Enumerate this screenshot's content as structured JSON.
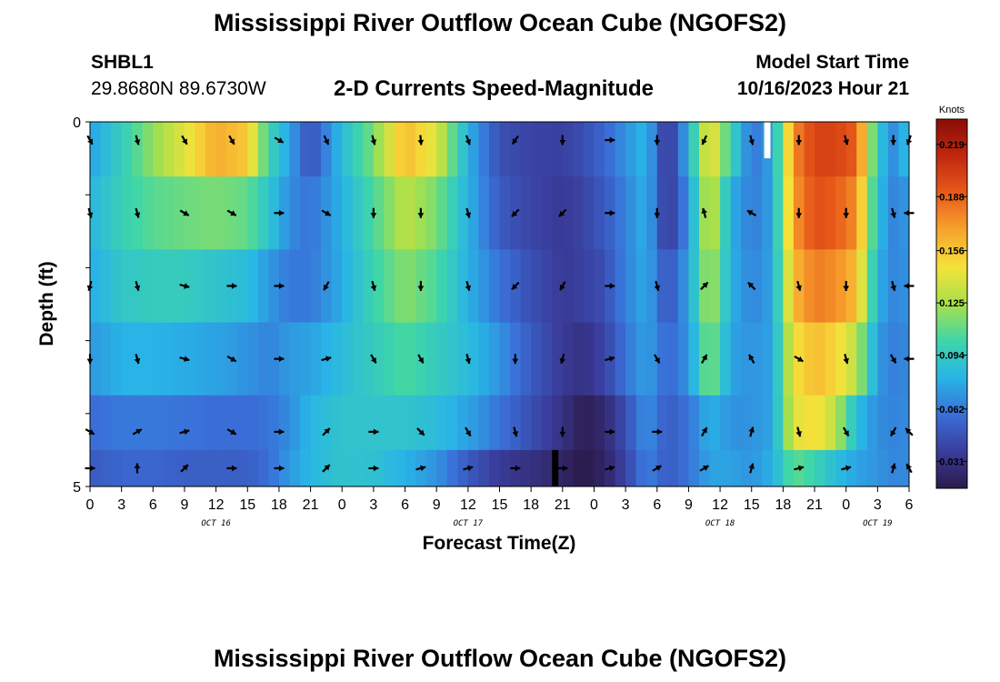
{
  "header": {
    "title": "Mississippi River Outflow Ocean Cube (NGOFS2)",
    "station": "SHBL1",
    "coordinates": "29.8680N  89.6730W",
    "plot_title": "2-D Currents Speed-Magnitude",
    "model_start_label": "Model Start Time",
    "model_start_value": "10/16/2023 Hour 21"
  },
  "footer": {
    "title": "Mississippi River Outflow Ocean Cube (NGOFS2)"
  },
  "chart_data": {
    "type": "heatmap",
    "title": "2-D Currents Speed-Magnitude",
    "xlabel": "Forecast Time(Z)",
    "ylabel": "Depth (ft)",
    "xlim": [
      0,
      78
    ],
    "ylim": [
      0,
      5
    ],
    "x_ticks": [
      0,
      3,
      6,
      9,
      12,
      15,
      18,
      21,
      24,
      27,
      30,
      33,
      36,
      39,
      42,
      45,
      48,
      51,
      54,
      57,
      60,
      63,
      66,
      69,
      72,
      75,
      78
    ],
    "x_tick_labels": [
      "0",
      "3",
      "6",
      "9",
      "12",
      "15",
      "18",
      "21",
      "0",
      "3",
      "6",
      "9",
      "12",
      "15",
      "18",
      "21",
      "0",
      "3",
      "6",
      "9",
      "12",
      "15",
      "18",
      "21",
      "0",
      "3",
      "6"
    ],
    "date_labels": [
      {
        "label": "OCT 16",
        "x": 12
      },
      {
        "label": "OCT 17",
        "x": 36
      },
      {
        "label": "OCT 18",
        "x": 60
      },
      {
        "label": "OCT 19",
        "x": 75
      }
    ],
    "y_tick_labels": [
      {
        "label": "0",
        "depth": 0
      },
      {
        "label": "5",
        "depth": 5
      }
    ],
    "depth_levels": [
      0.25,
      1.25,
      2.25,
      3.25,
      4.25,
      4.75
    ],
    "colorbar": {
      "unit": "Knots",
      "min": 0.015,
      "max": 0.234,
      "tick_values": [
        0.219,
        0.188,
        0.156,
        0.125,
        0.094,
        0.062,
        0.031
      ],
      "tick_labels": [
        "0.219",
        "0.188",
        "0.156",
        "0.125",
        "0.094",
        "0.062",
        "0.031"
      ],
      "colors": [
        "#2b1a4a",
        "#3a3d9c",
        "#3a6fd8",
        "#28b5e6",
        "#3fd6a8",
        "#a8e04a",
        "#f5e23a",
        "#f7a32d",
        "#e85a1a",
        "#c1270e",
        "#8a0d06"
      ]
    },
    "speed_keyframes": [
      {
        "t": 0,
        "v": [
          0.075,
          0.082,
          0.078,
          0.072,
          0.058,
          0.05
        ]
      },
      {
        "t": 3,
        "v": [
          0.095,
          0.098,
          0.092,
          0.08,
          0.062,
          0.055
        ]
      },
      {
        "t": 6,
        "v": [
          0.12,
          0.108,
          0.095,
          0.08,
          0.062,
          0.055
        ]
      },
      {
        "t": 9,
        "v": [
          0.14,
          0.112,
          0.095,
          0.078,
          0.06,
          0.052
        ]
      },
      {
        "t": 12,
        "v": [
          0.165,
          0.115,
          0.09,
          0.075,
          0.058,
          0.052
        ]
      },
      {
        "t": 15,
        "v": [
          0.155,
          0.11,
          0.085,
          0.07,
          0.058,
          0.052
        ]
      },
      {
        "t": 17,
        "v": [
          0.1,
          0.09,
          0.072,
          0.065,
          0.06,
          0.058
        ]
      },
      {
        "t": 19,
        "v": [
          0.075,
          0.068,
          0.062,
          0.072,
          0.068,
          0.072
        ]
      },
      {
        "t": 21,
        "v": [
          0.045,
          0.06,
          0.062,
          0.075,
          0.082,
          0.082
        ]
      },
      {
        "t": 24,
        "v": [
          0.085,
          0.08,
          0.078,
          0.085,
          0.09,
          0.09
        ]
      },
      {
        "t": 27,
        "v": [
          0.115,
          0.105,
          0.1,
          0.095,
          0.09,
          0.088
        ]
      },
      {
        "t": 30,
        "v": [
          0.16,
          0.13,
          0.118,
          0.105,
          0.09,
          0.08
        ]
      },
      {
        "t": 33,
        "v": [
          0.14,
          0.115,
          0.105,
          0.095,
          0.085,
          0.07
        ]
      },
      {
        "t": 36,
        "v": [
          0.08,
          0.08,
          0.08,
          0.085,
          0.075,
          0.05
        ]
      },
      {
        "t": 39,
        "v": [
          0.045,
          0.05,
          0.06,
          0.07,
          0.06,
          0.035
        ]
      },
      {
        "t": 42,
        "v": [
          0.04,
          0.04,
          0.045,
          0.05,
          0.045,
          0.03
        ]
      },
      {
        "t": 45,
        "v": [
          0.038,
          0.035,
          0.035,
          0.035,
          0.03,
          0.022
        ]
      },
      {
        "t": 47,
        "v": [
          0.045,
          0.04,
          0.038,
          0.03,
          0.018,
          0.015
        ]
      },
      {
        "t": 49,
        "v": [
          0.055,
          0.05,
          0.045,
          0.04,
          0.025,
          0.022
        ]
      },
      {
        "t": 51,
        "v": [
          0.07,
          0.065,
          0.065,
          0.06,
          0.045,
          0.04
        ]
      },
      {
        "t": 53,
        "v": [
          0.082,
          0.08,
          0.078,
          0.075,
          0.07,
          0.065
        ]
      },
      {
        "t": 55,
        "v": [
          0.03,
          0.032,
          0.045,
          0.055,
          0.05,
          0.05
        ]
      },
      {
        "t": 57,
        "v": [
          0.08,
          0.07,
          0.075,
          0.07,
          0.06,
          0.06
        ]
      },
      {
        "t": 59,
        "v": [
          0.15,
          0.14,
          0.13,
          0.12,
          0.08,
          0.075
        ]
      },
      {
        "t": 61,
        "v": [
          0.1,
          0.08,
          0.08,
          0.075,
          0.07,
          0.075
        ]
      },
      {
        "t": 63,
        "v": [
          0.06,
          0.062,
          0.065,
          0.07,
          0.07,
          0.07
        ]
      },
      {
        "t": 65,
        "v": [
          0.075,
          0.075,
          0.075,
          0.075,
          0.075,
          0.08
        ]
      },
      {
        "t": 67,
        "v": [
          0.175,
          0.17,
          0.16,
          0.145,
          0.14,
          0.11
        ]
      },
      {
        "t": 69,
        "v": [
          0.2,
          0.195,
          0.18,
          0.16,
          0.15,
          0.1
        ]
      },
      {
        "t": 71,
        "v": [
          0.2,
          0.19,
          0.175,
          0.15,
          0.13,
          0.085
        ]
      },
      {
        "t": 73,
        "v": [
          0.19,
          0.175,
          0.16,
          0.13,
          0.085,
          0.075
        ]
      },
      {
        "t": 75,
        "v": [
          0.09,
          0.085,
          0.08,
          0.072,
          0.068,
          0.07
        ]
      },
      {
        "t": 77,
        "v": [
          0.062,
          0.06,
          0.062,
          0.062,
          0.065,
          0.065
        ]
      },
      {
        "t": 78,
        "v": [
          0.1,
          0.08,
          0.075,
          0.07,
          0.068,
          0.068
        ]
      }
    ],
    "missing_values": [
      {
        "t_start": 64.2,
        "t_end": 64.8,
        "depth_start": 0,
        "depth_end": 0.5,
        "color": "#ffffff"
      },
      {
        "t_start": 44.0,
        "t_end": 44.6,
        "depth_start": 4.5,
        "depth_end": 5.0,
        "color": "#000000"
      }
    ],
    "vector_times": [
      0,
      4.5,
      9,
      13.5,
      18,
      22.5,
      27,
      31.5,
      36,
      40.5,
      45,
      49.5,
      54,
      58.5,
      63,
      67.5,
      72,
      76.5,
      78
    ],
    "vector_directions_deg": [
      [
        150,
        165,
        150,
        150,
        120,
        155,
        165,
        175,
        160,
        215,
        180,
        90,
        180,
        205,
        165,
        180,
        165,
        180,
        200
      ],
      [
        165,
        165,
        120,
        120,
        90,
        120,
        180,
        180,
        165,
        225,
        225,
        90,
        180,
        345,
        300,
        180,
        180,
        165,
        270
      ],
      [
        195,
        165,
        105,
        90,
        90,
        210,
        165,
        180,
        165,
        225,
        210,
        90,
        165,
        45,
        315,
        165,
        180,
        165,
        270
      ],
      [
        180,
        165,
        105,
        120,
        90,
        75,
        150,
        150,
        165,
        180,
        195,
        75,
        150,
        30,
        330,
        120,
        165,
        150,
        270
      ],
      [
        120,
        60,
        75,
        120,
        90,
        45,
        90,
        135,
        150,
        165,
        180,
        90,
        90,
        30,
        15,
        165,
        150,
        210,
        315
      ],
      [
        90,
        0,
        45,
        90,
        90,
        45,
        90,
        75,
        75,
        90,
        90,
        75,
        60,
        60,
        15,
        75,
        75,
        15,
        330
      ]
    ]
  }
}
